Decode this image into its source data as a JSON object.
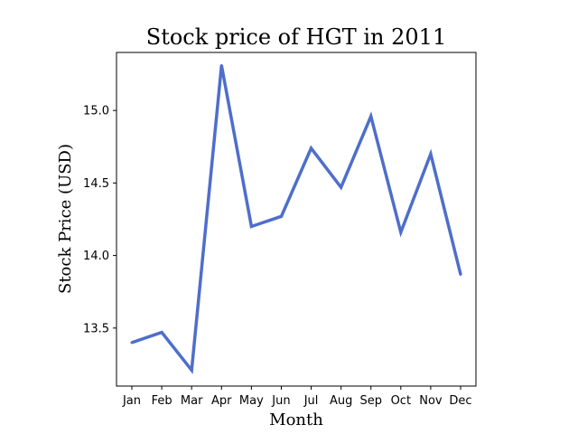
{
  "chart_data": {
    "type": "line",
    "title": "Stock price of HGT in 2011",
    "xlabel": "Month",
    "ylabel": "Stock Price (USD)",
    "categories": [
      "Jan",
      "Feb",
      "Mar",
      "Apr",
      "May",
      "Jun",
      "Jul",
      "Aug",
      "Sep",
      "Oct",
      "Nov",
      "Dec"
    ],
    "series": [
      {
        "color": "#4e6ecb",
        "values": [
          13.4,
          13.47,
          13.21,
          15.31,
          14.2,
          14.27,
          14.74,
          14.47,
          14.96,
          14.16,
          14.7,
          13.87
        ]
      }
    ],
    "ylim": [
      13.1,
      15.4
    ],
    "yticks": [
      "13.5",
      "14.0",
      "14.5",
      "15.0"
    ],
    "grid": false
  }
}
